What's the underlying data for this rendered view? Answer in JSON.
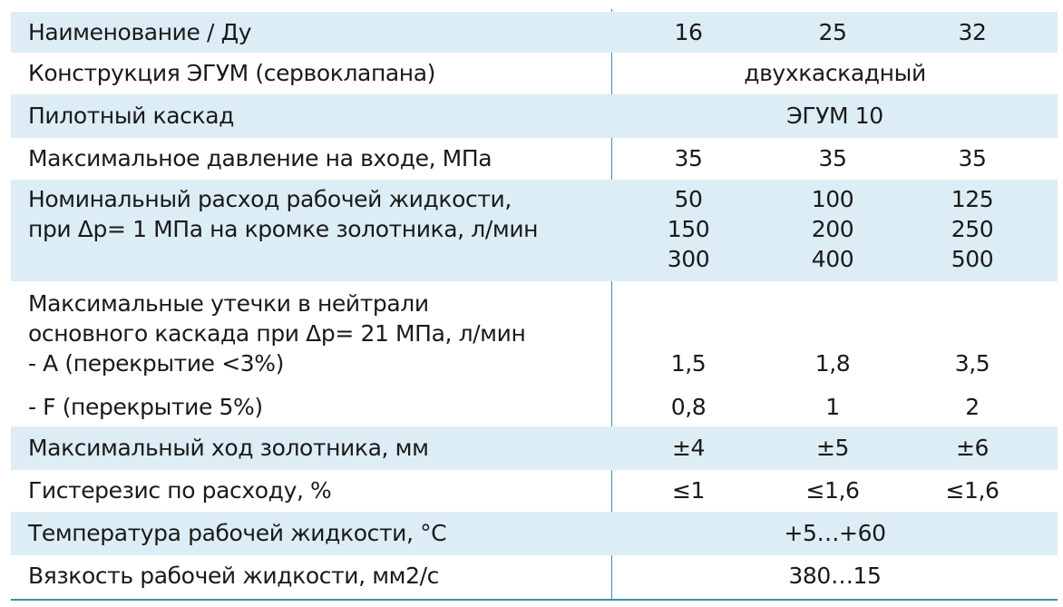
{
  "rows": [
    {
      "label": "Наименование / Ду",
      "c16": "16",
      "c25": "25",
      "c32": "32"
    },
    {
      "label": "Конструкция ЭГУМ (сервоклапана)",
      "span": "двухкаскадный"
    },
    {
      "label": "Пилотный каскад",
      "span": "ЭГУМ 10"
    },
    {
      "label": "Максимальное давление на входе, МПа",
      "c16": "35",
      "c25": "35",
      "c32": "35"
    },
    {
      "label_lines": [
        "Номинальный расход рабочей жидкости,",
        "при Δр= 1 МПа на кромке золотника, л/мин"
      ],
      "c16": [
        "50",
        "150",
        "300"
      ],
      "c25": [
        "100",
        "200",
        "400"
      ],
      "c32": [
        "125",
        "250",
        "500"
      ]
    },
    {
      "label_lines": [
        "Максимальные утечки в нейтрали",
        "основного каскада при Δр= 21 МПа, л/мин",
        "- A (перекрытие <3%)"
      ],
      "c16": "1,5",
      "c25": "1,8",
      "c32": "3,5"
    },
    {
      "label": "- F (перекрытие 5%)",
      "c16": "0,8",
      "c25": "1",
      "c32": "2"
    },
    {
      "label": "Максимальный ход золотника, мм",
      "c16": "±4",
      "c25": "±5",
      "c32": "±6"
    },
    {
      "label": "Гистерезис по расходу, %",
      "c16": "≤1",
      "c25": "≤1,6",
      "c32": "≤1,6"
    },
    {
      "label": "Температура рабочей жидкости, °C",
      "span": "+5…+60"
    },
    {
      "label": "Вязкость рабочей жидкости, мм2/с",
      "span": "380…15"
    }
  ]
}
